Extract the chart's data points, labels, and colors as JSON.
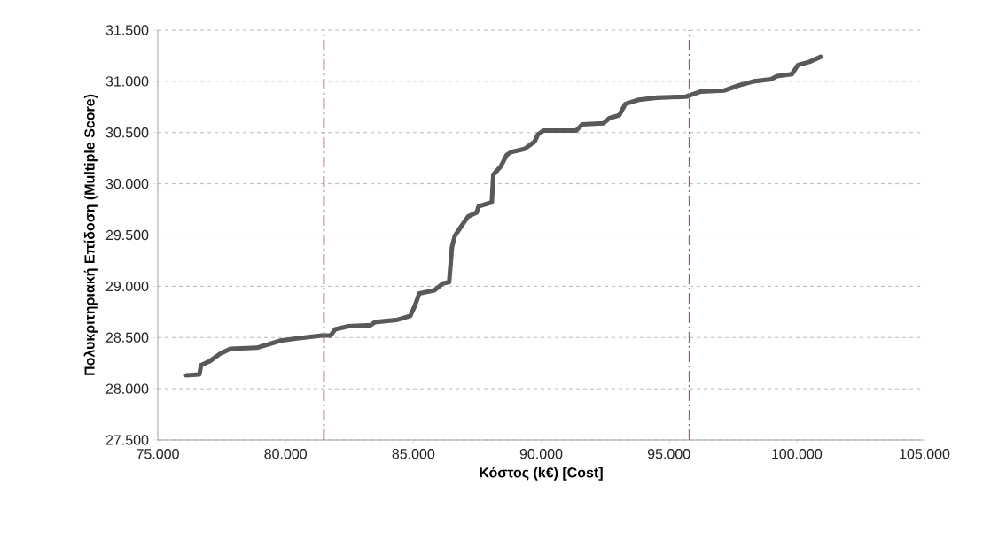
{
  "chart_data": {
    "type": "line",
    "xlabel": "Κόστος (k€) [Cost]",
    "ylabel": "Πολυκριτηριακή Επίδοση (Multiple Score)",
    "series": [
      {
        "color": "#595959",
        "x": [
          76110,
          76630,
          76690,
          77040,
          77430,
          77840,
          78880,
          79810,
          80380,
          81420,
          81760,
          81940,
          82460,
          83320,
          83500,
          84330,
          84880,
          85060,
          85230,
          85820,
          86170,
          86400,
          86510,
          86620,
          86860,
          87140,
          87480,
          87550,
          88070,
          88130,
          88420,
          88650,
          88830,
          89350,
          89740,
          89870,
          90090,
          91370,
          91610,
          92430,
          92670,
          93060,
          93300,
          93820,
          94520,
          95660,
          96250,
          97150,
          97730,
          98320,
          99000,
          99230,
          99810,
          100050,
          100500,
          100940
        ],
        "values": [
          28130,
          28140,
          28230,
          28270,
          28340,
          28390,
          28400,
          28470,
          28490,
          28520,
          28520,
          28580,
          28610,
          28620,
          28650,
          28670,
          28710,
          28810,
          28930,
          28960,
          29030,
          29040,
          29380,
          29490,
          29580,
          29680,
          29720,
          29780,
          29820,
          30090,
          30170,
          30280,
          30310,
          30340,
          30410,
          30480,
          30520,
          30520,
          30580,
          30590,
          30640,
          30670,
          30780,
          30820,
          30840,
          30850,
          30900,
          30910,
          30960,
          31000,
          31020,
          31050,
          31070,
          31160,
          31190,
          31240
        ]
      }
    ],
    "xlim": [
      75000,
      105000
    ],
    "ylim": [
      27500,
      31500
    ],
    "xticks": [
      {
        "value": 75000,
        "label": "75.000"
      },
      {
        "value": 80000,
        "label": "80.000"
      },
      {
        "value": 85000,
        "label": "85.000"
      },
      {
        "value": 90000,
        "label": "90.000"
      },
      {
        "value": 95000,
        "label": "95.000"
      },
      {
        "value": 100000,
        "label": "100.000"
      },
      {
        "value": 105000,
        "label": "105.000"
      }
    ],
    "yticks": [
      {
        "value": 27500,
        "label": "27.500"
      },
      {
        "value": 28000,
        "label": "28.000"
      },
      {
        "value": 28500,
        "label": "28.500"
      },
      {
        "value": 29000,
        "label": "29.000"
      },
      {
        "value": 29500,
        "label": "29.500"
      },
      {
        "value": 30000,
        "label": "30.000"
      },
      {
        "value": 30500,
        "label": "30.500"
      },
      {
        "value": 31000,
        "label": "31.000"
      },
      {
        "value": 31500,
        "label": "31.500"
      }
    ],
    "ref_lines": [
      {
        "axis": "x",
        "value": 81500,
        "color": "#c0504d",
        "line_style": "dashdot"
      },
      {
        "axis": "x",
        "value": 95800,
        "color": "#c0504d",
        "line_style": "dashdot"
      }
    ],
    "grid": "y",
    "marker": "none",
    "line_style": "solid"
  }
}
